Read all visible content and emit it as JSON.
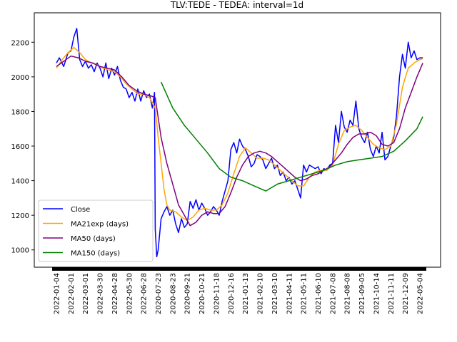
{
  "chart_data": {
    "type": "line",
    "title": "TLV:TEDE - TEDEA: interval=1d",
    "xlabel": "",
    "ylabel": "",
    "ylim": [
      900,
      2370
    ],
    "y_ticks": [
      1000,
      1200,
      1400,
      1600,
      1800,
      2000,
      2200
    ],
    "grid": false,
    "legend_position": "lower-left",
    "x_categories": [
      "2022-01-04",
      "2022-02-01",
      "2022-03-01",
      "2022-03-30",
      "2022-04-28",
      "2022-05-30",
      "2022-06-28",
      "2020-07-23",
      "2020-08-23",
      "2020-09-21",
      "2020-10-21",
      "2020-11-18",
      "2020-12-16",
      "2021-01-13",
      "2021-02-10",
      "2021-03-10",
      "2021-04-11",
      "2021-05-11",
      "2021-06-10",
      "2021-07-08",
      "2021-08-08",
      "2021-09-05",
      "2021-10-14",
      "2021-11-11",
      "2021-12-09",
      "2022-05-04"
    ],
    "series": [
      {
        "name": "Close",
        "color": "#0000ff",
        "points": [
          [
            0,
            2080
          ],
          [
            0.2,
            2110
          ],
          [
            0.5,
            2060
          ],
          [
            0.8,
            2140
          ],
          [
            1.0,
            2150
          ],
          [
            1.2,
            2230
          ],
          [
            1.4,
            2280
          ],
          [
            1.6,
            2100
          ],
          [
            1.8,
            2060
          ],
          [
            2.0,
            2090
          ],
          [
            2.2,
            2050
          ],
          [
            2.4,
            2070
          ],
          [
            2.6,
            2030
          ],
          [
            2.8,
            2080
          ],
          [
            3.0,
            2050
          ],
          [
            3.2,
            2000
          ],
          [
            3.4,
            2080
          ],
          [
            3.6,
            1990
          ],
          [
            3.8,
            2050
          ],
          [
            4.0,
            2010
          ],
          [
            4.2,
            2060
          ],
          [
            4.4,
            1980
          ],
          [
            4.6,
            1940
          ],
          [
            4.8,
            1930
          ],
          [
            5.0,
            1880
          ],
          [
            5.2,
            1910
          ],
          [
            5.4,
            1860
          ],
          [
            5.6,
            1930
          ],
          [
            5.8,
            1860
          ],
          [
            6.0,
            1920
          ],
          [
            6.2,
            1880
          ],
          [
            6.4,
            1900
          ],
          [
            6.6,
            1820
          ],
          [
            6.75,
            1910
          ],
          [
            6.8,
            1120
          ],
          [
            6.9,
            960
          ],
          [
            7.0,
            1000
          ],
          [
            7.2,
            1180
          ],
          [
            7.4,
            1220
          ],
          [
            7.6,
            1250
          ],
          [
            7.8,
            1200
          ],
          [
            8.0,
            1230
          ],
          [
            8.2,
            1150
          ],
          [
            8.4,
            1100
          ],
          [
            8.6,
            1180
          ],
          [
            8.8,
            1130
          ],
          [
            9.0,
            1150
          ],
          [
            9.2,
            1280
          ],
          [
            9.4,
            1240
          ],
          [
            9.6,
            1290
          ],
          [
            9.8,
            1230
          ],
          [
            10.0,
            1270
          ],
          [
            10.2,
            1240
          ],
          [
            10.4,
            1200
          ],
          [
            10.6,
            1220
          ],
          [
            10.8,
            1250
          ],
          [
            11.0,
            1230
          ],
          [
            11.2,
            1200
          ],
          [
            11.4,
            1280
          ],
          [
            11.6,
            1340
          ],
          [
            11.8,
            1400
          ],
          [
            12.0,
            1580
          ],
          [
            12.2,
            1620
          ],
          [
            12.4,
            1560
          ],
          [
            12.6,
            1640
          ],
          [
            12.8,
            1600
          ],
          [
            13.0,
            1580
          ],
          [
            13.2,
            1540
          ],
          [
            13.4,
            1480
          ],
          [
            13.6,
            1500
          ],
          [
            13.8,
            1550
          ],
          [
            14.0,
            1540
          ],
          [
            14.2,
            1520
          ],
          [
            14.4,
            1470
          ],
          [
            14.6,
            1500
          ],
          [
            14.8,
            1530
          ],
          [
            15.0,
            1470
          ],
          [
            15.2,
            1490
          ],
          [
            15.4,
            1430
          ],
          [
            15.6,
            1450
          ],
          [
            15.8,
            1400
          ],
          [
            16.0,
            1420
          ],
          [
            16.2,
            1380
          ],
          [
            16.4,
            1400
          ],
          [
            16.6,
            1350
          ],
          [
            16.8,
            1300
          ],
          [
            17.0,
            1490
          ],
          [
            17.2,
            1450
          ],
          [
            17.4,
            1490
          ],
          [
            17.6,
            1480
          ],
          [
            17.8,
            1470
          ],
          [
            18.0,
            1480
          ],
          [
            18.2,
            1440
          ],
          [
            18.4,
            1470
          ],
          [
            18.6,
            1460
          ],
          [
            18.8,
            1490
          ],
          [
            19.0,
            1500
          ],
          [
            19.2,
            1720
          ],
          [
            19.4,
            1620
          ],
          [
            19.6,
            1800
          ],
          [
            19.8,
            1710
          ],
          [
            20.0,
            1680
          ],
          [
            20.2,
            1750
          ],
          [
            20.4,
            1720
          ],
          [
            20.6,
            1860
          ],
          [
            20.8,
            1700
          ],
          [
            21.0,
            1650
          ],
          [
            21.2,
            1620
          ],
          [
            21.4,
            1680
          ],
          [
            21.6,
            1580
          ],
          [
            21.8,
            1540
          ],
          [
            22.0,
            1600
          ],
          [
            22.2,
            1560
          ],
          [
            22.4,
            1680
          ],
          [
            22.6,
            1520
          ],
          [
            22.8,
            1540
          ],
          [
            23.0,
            1600
          ],
          [
            23.2,
            1650
          ],
          [
            23.4,
            1780
          ],
          [
            23.6,
            2000
          ],
          [
            23.8,
            2130
          ],
          [
            24.0,
            2050
          ],
          [
            24.2,
            2200
          ],
          [
            24.4,
            2110
          ],
          [
            24.6,
            2150
          ],
          [
            24.8,
            2100
          ],
          [
            25.0,
            2110
          ],
          [
            25.2,
            2110
          ]
        ]
      },
      {
        "name": "MA21exp (days)",
        "color": "#ffa500",
        "points": [
          [
            0,
            2050
          ],
          [
            0.4,
            2100
          ],
          [
            0.8,
            2140
          ],
          [
            1.2,
            2170
          ],
          [
            1.6,
            2140
          ],
          [
            2.0,
            2100
          ],
          [
            2.4,
            2080
          ],
          [
            2.8,
            2070
          ],
          [
            3.2,
            2050
          ],
          [
            3.6,
            2040
          ],
          [
            4.0,
            2030
          ],
          [
            4.4,
            2000
          ],
          [
            4.8,
            1960
          ],
          [
            5.2,
            1930
          ],
          [
            5.6,
            1900
          ],
          [
            6.0,
            1900
          ],
          [
            6.4,
            1880
          ],
          [
            6.8,
            1820
          ],
          [
            7.0,
            1650
          ],
          [
            7.2,
            1500
          ],
          [
            7.4,
            1350
          ],
          [
            7.6,
            1260
          ],
          [
            7.8,
            1230
          ],
          [
            8.2,
            1220
          ],
          [
            8.6,
            1190
          ],
          [
            9.0,
            1170
          ],
          [
            9.4,
            1190
          ],
          [
            9.8,
            1230
          ],
          [
            10.2,
            1240
          ],
          [
            10.6,
            1230
          ],
          [
            11.0,
            1230
          ],
          [
            11.4,
            1260
          ],
          [
            11.8,
            1330
          ],
          [
            12.2,
            1440
          ],
          [
            12.6,
            1540
          ],
          [
            13.0,
            1590
          ],
          [
            13.4,
            1560
          ],
          [
            13.8,
            1530
          ],
          [
            14.2,
            1530
          ],
          [
            14.6,
            1520
          ],
          [
            15.0,
            1490
          ],
          [
            15.4,
            1460
          ],
          [
            15.8,
            1430
          ],
          [
            16.2,
            1400
          ],
          [
            16.6,
            1370
          ],
          [
            17.0,
            1370
          ],
          [
            17.4,
            1420
          ],
          [
            17.8,
            1450
          ],
          [
            18.2,
            1460
          ],
          [
            18.6,
            1460
          ],
          [
            19.0,
            1490
          ],
          [
            19.4,
            1610
          ],
          [
            19.8,
            1690
          ],
          [
            20.2,
            1710
          ],
          [
            20.6,
            1720
          ],
          [
            21.0,
            1690
          ],
          [
            21.4,
            1650
          ],
          [
            21.8,
            1610
          ],
          [
            22.2,
            1590
          ],
          [
            22.6,
            1580
          ],
          [
            23.0,
            1600
          ],
          [
            23.4,
            1730
          ],
          [
            23.8,
            1940
          ],
          [
            24.2,
            2050
          ],
          [
            24.6,
            2080
          ],
          [
            25.0,
            2100
          ],
          [
            25.2,
            2105
          ]
        ]
      },
      {
        "name": "MA50 (days)",
        "color": "#800080",
        "points": [
          [
            0,
            2060
          ],
          [
            0.5,
            2090
          ],
          [
            1.0,
            2120
          ],
          [
            1.5,
            2110
          ],
          [
            2.0,
            2090
          ],
          [
            2.5,
            2080
          ],
          [
            3.0,
            2060
          ],
          [
            3.5,
            2050
          ],
          [
            4.0,
            2040
          ],
          [
            4.5,
            2000
          ],
          [
            5.0,
            1950
          ],
          [
            5.5,
            1920
          ],
          [
            6.0,
            1900
          ],
          [
            6.5,
            1890
          ],
          [
            6.8,
            1880
          ],
          [
            7.2,
            1650
          ],
          [
            7.6,
            1500
          ],
          [
            8.0,
            1380
          ],
          [
            8.4,
            1260
          ],
          [
            8.8,
            1200
          ],
          [
            9.2,
            1140
          ],
          [
            9.6,
            1160
          ],
          [
            10.0,
            1200
          ],
          [
            10.4,
            1220
          ],
          [
            10.8,
            1210
          ],
          [
            11.2,
            1210
          ],
          [
            11.6,
            1250
          ],
          [
            12.0,
            1330
          ],
          [
            12.4,
            1420
          ],
          [
            12.8,
            1490
          ],
          [
            13.2,
            1540
          ],
          [
            13.6,
            1560
          ],
          [
            14.0,
            1570
          ],
          [
            14.4,
            1560
          ],
          [
            14.8,
            1540
          ],
          [
            15.2,
            1510
          ],
          [
            15.6,
            1480
          ],
          [
            16.0,
            1450
          ],
          [
            16.4,
            1420
          ],
          [
            16.8,
            1400
          ],
          [
            17.2,
            1410
          ],
          [
            17.6,
            1430
          ],
          [
            18.0,
            1440
          ],
          [
            18.4,
            1460
          ],
          [
            18.8,
            1480
          ],
          [
            19.2,
            1520
          ],
          [
            19.6,
            1560
          ],
          [
            20.0,
            1610
          ],
          [
            20.4,
            1650
          ],
          [
            20.8,
            1670
          ],
          [
            21.2,
            1670
          ],
          [
            21.6,
            1680
          ],
          [
            22.0,
            1660
          ],
          [
            22.4,
            1610
          ],
          [
            22.8,
            1600
          ],
          [
            23.2,
            1620
          ],
          [
            23.6,
            1700
          ],
          [
            24.0,
            1820
          ],
          [
            24.4,
            1910
          ],
          [
            24.8,
            2000
          ],
          [
            25.2,
            2080
          ]
        ]
      },
      {
        "name": "MA150 (days)",
        "color": "#008000",
        "points": [
          [
            7.2,
            1970
          ],
          [
            8.0,
            1820
          ],
          [
            8.8,
            1720
          ],
          [
            9.6,
            1640
          ],
          [
            10.4,
            1560
          ],
          [
            11.2,
            1470
          ],
          [
            12.0,
            1420
          ],
          [
            12.8,
            1400
          ],
          [
            13.6,
            1370
          ],
          [
            14.4,
            1340
          ],
          [
            15.2,
            1380
          ],
          [
            16.0,
            1400
          ],
          [
            16.8,
            1420
          ],
          [
            17.6,
            1440
          ],
          [
            18.4,
            1460
          ],
          [
            19.2,
            1490
          ],
          [
            20.0,
            1510
          ],
          [
            20.8,
            1520
          ],
          [
            21.6,
            1530
          ],
          [
            22.4,
            1540
          ],
          [
            23.2,
            1570
          ],
          [
            24.0,
            1630
          ],
          [
            24.8,
            1700
          ],
          [
            25.2,
            1770
          ]
        ]
      }
    ]
  }
}
